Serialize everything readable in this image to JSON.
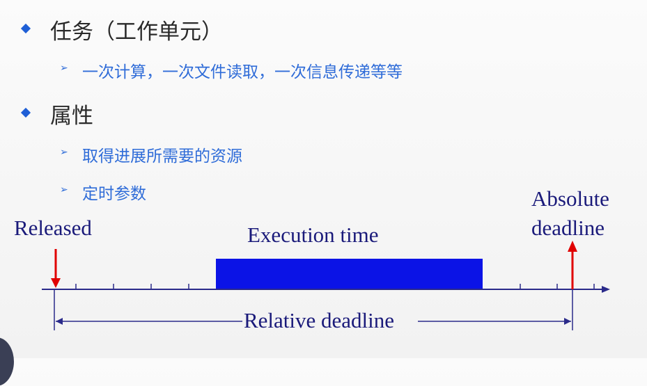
{
  "slide": {
    "bullets": [
      {
        "text": "任务（工作单元）",
        "sub": [
          "一次计算，一次文件读取，一次信息传递等等"
        ]
      },
      {
        "text": "属性",
        "sub": [
          "取得进展所需要的资源",
          "定时参数"
        ]
      }
    ],
    "diagram": {
      "released_label": "Released",
      "execution_label": "Execution time",
      "absolute_label_line1": "Absolute",
      "absolute_label_line2": "deadline",
      "relative_label": "Relative deadline",
      "colors": {
        "axis": "#2a2a8a",
        "arrow": "#e00000",
        "execution_bar": "#0b13e6"
      }
    }
  }
}
